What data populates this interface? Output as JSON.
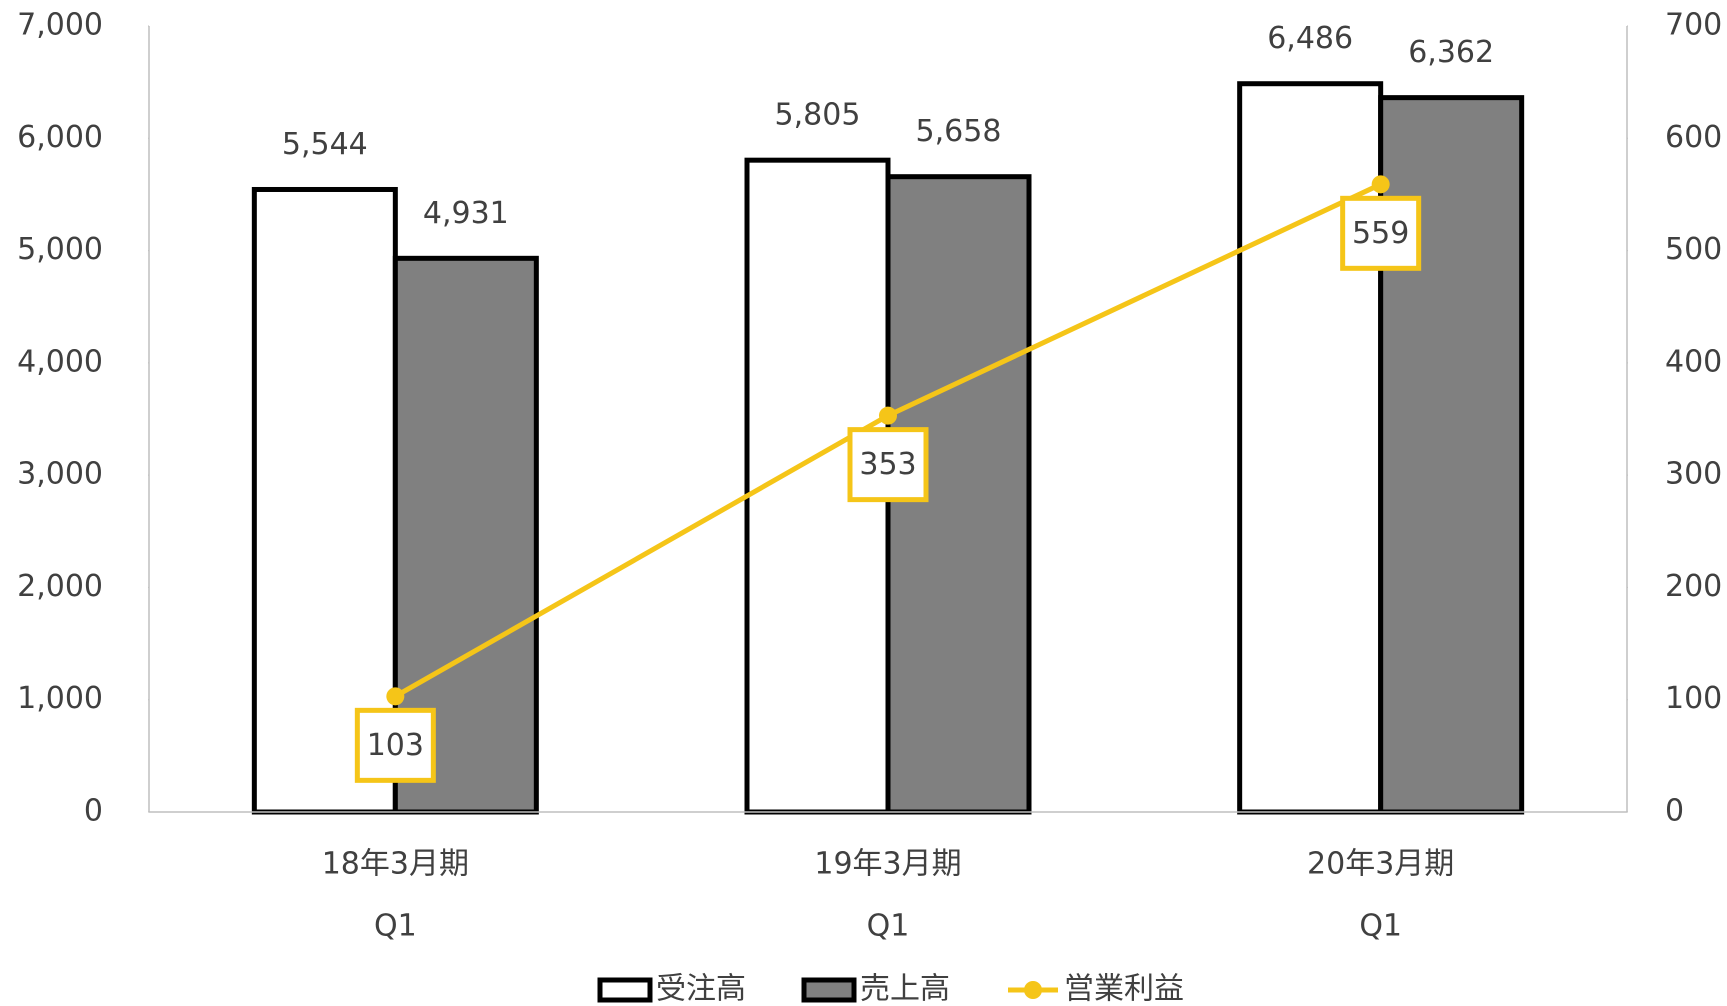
{
  "chart_data": {
    "type": "bar_line",
    "categories": [
      "18年3月期",
      "19年3月期",
      "20年3月期"
    ],
    "category_sub_labels": [
      "Q1",
      "Q1",
      "Q1"
    ],
    "series": [
      {
        "name": "受注高",
        "type": "bar",
        "color": "#ffffff",
        "values": [
          5544,
          5805,
          6486
        ],
        "value_labels": [
          "5,544",
          "5,805",
          "6,486"
        ]
      },
      {
        "name": "売上高",
        "type": "bar",
        "color": "#808080",
        "values": [
          4931,
          5658,
          6362
        ],
        "value_labels": [
          "4,931",
          "5,658",
          "6,362"
        ]
      },
      {
        "name": "営業利益",
        "type": "line",
        "axis": "y2",
        "color": "#f5c518",
        "values": [
          103,
          353,
          559
        ]
      }
    ],
    "ylim": [
      0,
      7000
    ],
    "yticks": [
      0,
      {
        "value": 1000,
        "label": "1,000"
      },
      {
        "value": 2000,
        "label": "2,000"
      },
      {
        "value": 3000,
        "label": "3,000"
      },
      {
        "value": 4000,
        "label": "4,000"
      },
      {
        "value": 5000,
        "label": "5,000"
      },
      {
        "value": 6000,
        "label": "6,000"
      },
      {
        "value": 7000,
        "label": "7,000"
      }
    ],
    "y2lim": [
      0,
      700
    ],
    "y2ticks": [
      0,
      100,
      200,
      300,
      400,
      500,
      600,
      700
    ],
    "legend": "bottom"
  }
}
